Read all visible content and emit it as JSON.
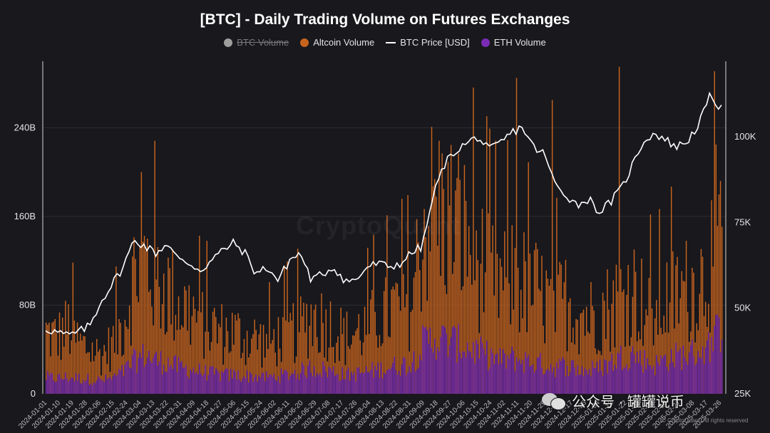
{
  "chart_data": {
    "type": "bar",
    "title": "[BTC] - Daily Trading Volume on Futures Exchanges",
    "legend": {
      "placement": "top-center",
      "entries": [
        {
          "name": "BTC Volume",
          "color": "#9e9e9e",
          "marker": "dot",
          "hidden": true
        },
        {
          "name": "Altcoin Volume",
          "color": "#c8641e",
          "marker": "dot",
          "hidden": false
        },
        {
          "name": "BTC Price [USD]",
          "color": "#ffffff",
          "marker": "line",
          "hidden": false
        },
        {
          "name": "ETH Volume",
          "color": "#7b2cb6",
          "marker": "dot",
          "hidden": false
        }
      ]
    },
    "y_left": {
      "min": 0,
      "max": 300,
      "unit": "B",
      "ticks": [
        "0",
        "80B",
        "160B",
        "240B"
      ],
      "tick_values": [
        0,
        80,
        160,
        240
      ]
    },
    "y_right": {
      "min": 25,
      "max": 122,
      "unit": "K",
      "ticks": [
        "25K",
        "50K",
        "75K",
        "100K"
      ],
      "tick_values": [
        25,
        50,
        75,
        100
      ]
    },
    "x": {
      "start": "2024-01-01",
      "end": "2025-03-31",
      "tick_labels": [
        "2024-01-01",
        "2024-01-10",
        "2024-01-19",
        "2024-01-28",
        "2024-02-06",
        "2024-02-15",
        "2024-02-24",
        "2024-03-04",
        "2024-03-13",
        "2024-03-22",
        "2024-03-31",
        "2024-04-09",
        "2024-04-18",
        "2024-04-27",
        "2024-05-06",
        "2024-05-15",
        "2024-05-24",
        "2024-06-02",
        "2024-06-11",
        "2024-06-20",
        "2024-06-29",
        "2024-07-08",
        "2024-07-17",
        "2024-07-26",
        "2024-08-04",
        "2024-08-13",
        "2024-08-22",
        "2024-08-31",
        "2024-09-09",
        "2024-09-18",
        "2024-09-27",
        "2024-10-06",
        "2024-10-15",
        "2024-10-24",
        "2024-11-02",
        "2024-11-11",
        "2024-11-20",
        "2024-11-29",
        "2024-12-08",
        "2024-12-17",
        "2024-12-26",
        "2025-01-04",
        "2025-01-13",
        "2025-01-22",
        "2025-01-31",
        "2025-02-09",
        "2025-02-18",
        "2025-02-27",
        "2025-03-08",
        "2025-03-17",
        "2025-03-26"
      ]
    },
    "series": [
      {
        "name": "Altcoin Volume",
        "color": "#c8641e",
        "values_B_weekly": [
          55,
          50,
          60,
          45,
          40,
          35,
          45,
          65,
          110,
          120,
          100,
          95,
          80,
          75,
          65,
          60,
          55,
          55,
          50,
          50,
          45,
          50,
          55,
          60,
          70,
          65,
          60,
          50,
          55,
          60,
          70,
          75,
          80,
          85,
          150,
          170,
          160,
          155,
          140,
          120,
          110,
          100,
          105,
          100,
          95,
          85,
          80,
          85,
          75,
          70,
          75,
          80,
          90,
          95,
          80,
          70,
          85,
          90,
          95,
          100,
          120,
          150
        ]
      },
      {
        "name": "ETH Volume",
        "color": "#7b2cb6",
        "values_B_weekly": [
          15,
          14,
          15,
          14,
          13,
          12,
          14,
          20,
          30,
          35,
          30,
          28,
          24,
          22,
          20,
          18,
          17,
          17,
          16,
          16,
          15,
          16,
          18,
          20,
          24,
          22,
          20,
          17,
          18,
          20,
          22,
          24,
          26,
          28,
          45,
          50,
          48,
          46,
          42,
          38,
          34,
          30,
          32,
          30,
          28,
          26,
          24,
          26,
          22,
          21,
          24,
          28,
          34,
          36,
          30,
          26,
          32,
          34,
          36,
          38,
          45,
          60
        ]
      },
      {
        "name": "BTC Price [USD]",
        "color": "#ffffff",
        "values_K_weekly": [
          44,
          43,
          42,
          43,
          45,
          52,
          57,
          62,
          70,
          68,
          66,
          69,
          64,
          63,
          61,
          64,
          67,
          69,
          66,
          60,
          62,
          58,
          64,
          66,
          58,
          60,
          62,
          58,
          58,
          62,
          63,
          62,
          63,
          66,
          68,
          83,
          92,
          96,
          98,
          100,
          96,
          98,
          101,
          103,
          97,
          95,
          86,
          83,
          80,
          82,
          78,
          81,
          85,
          92,
          99,
          101,
          99,
          97,
          99,
          104,
          112,
          108
        ]
      }
    ],
    "bar_peaks_B": [
      {
        "date": "2024-03-05",
        "altcoin": 200
      },
      {
        "date": "2024-11-12",
        "altcoin": 285
      },
      {
        "date": "2024-12-06",
        "altcoin": 265
      },
      {
        "date": "2025-01-20",
        "altcoin": 295
      },
      {
        "date": "2025-03-26",
        "altcoin": 225
      }
    ]
  },
  "watermark": "CryptoQuant",
  "overlay": {
    "label": "公众号 · 罐罐说币"
  },
  "footer": {
    "copyright": "© CryptoQuant. All rights reserved"
  },
  "colors": {
    "background": "#18181d",
    "grid": "#2c2c33",
    "axis": "#d9d9d9"
  }
}
